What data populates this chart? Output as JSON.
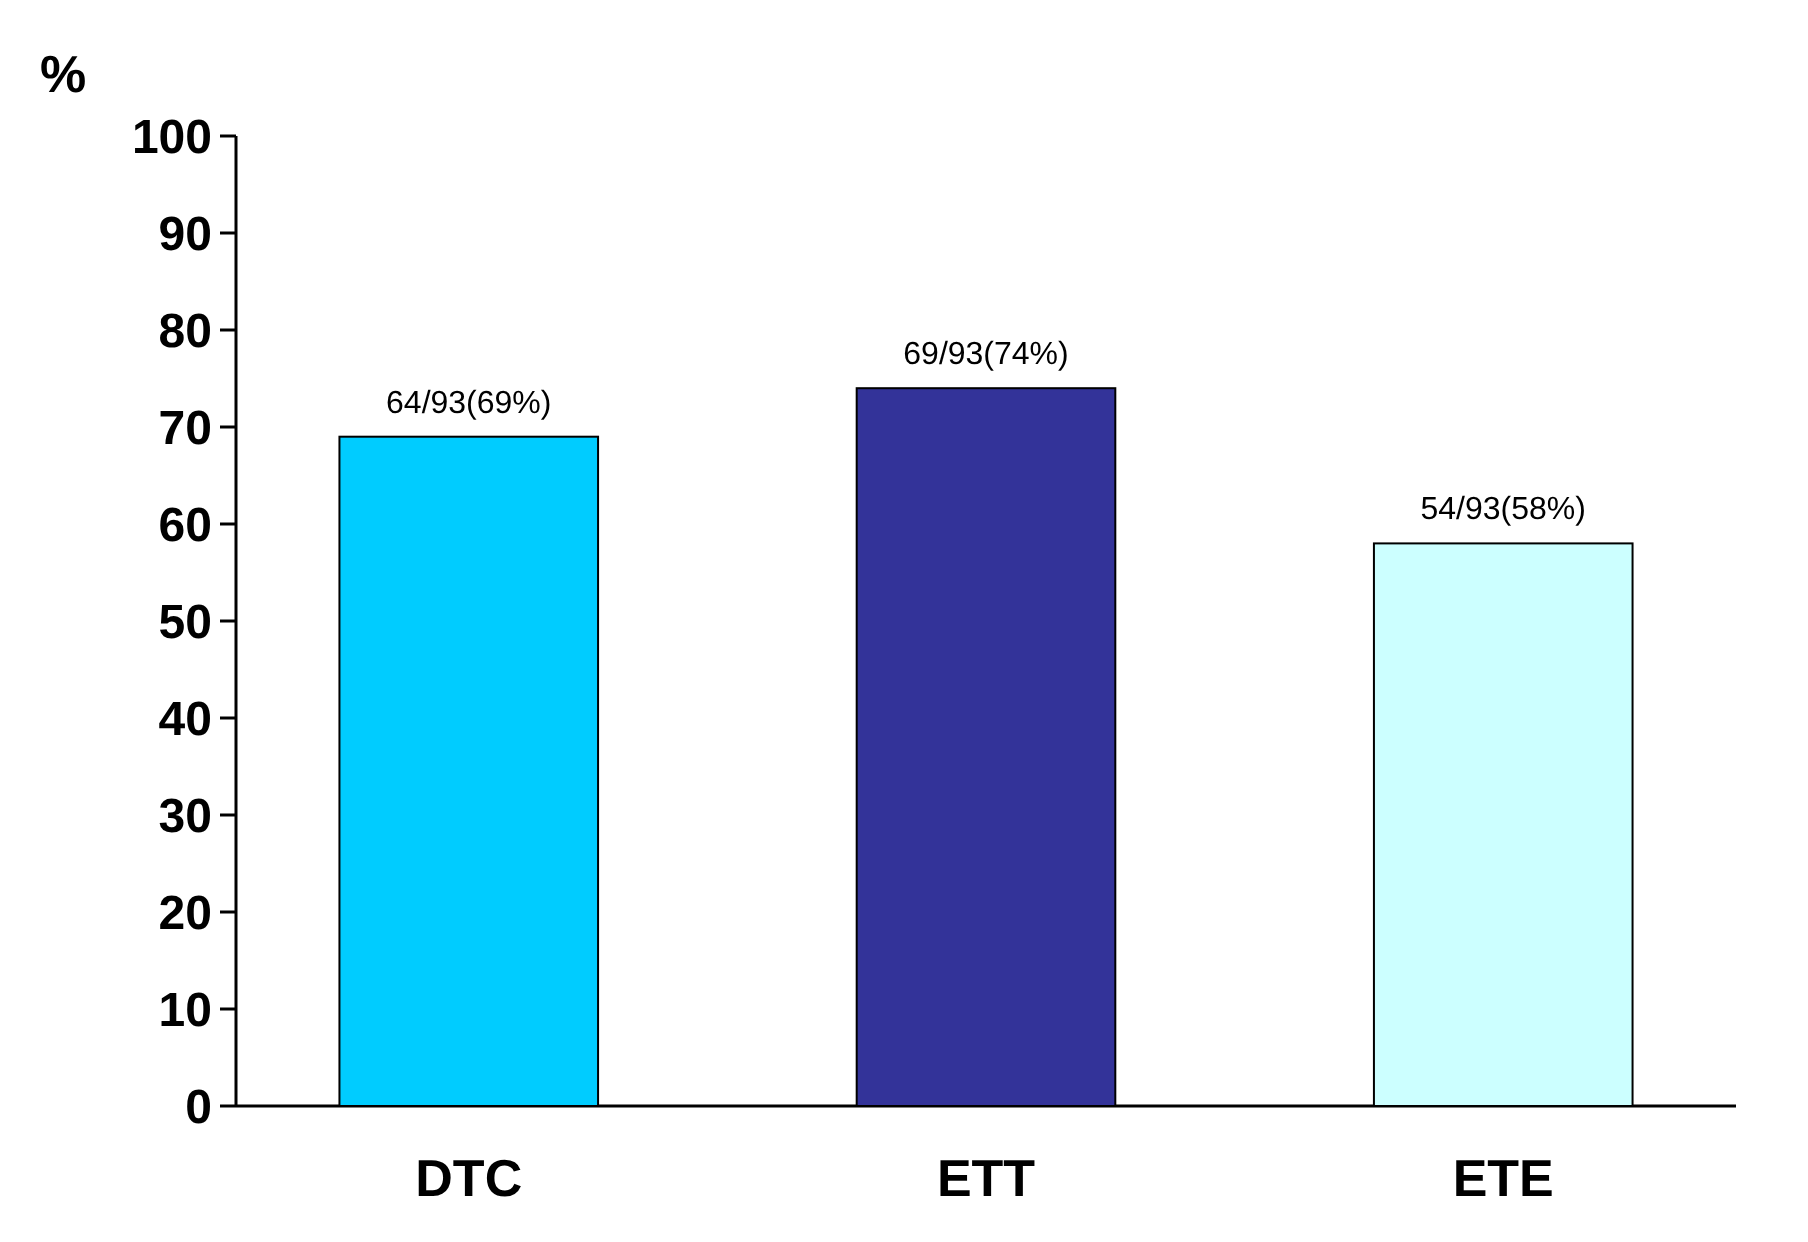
{
  "chart_data": {
    "type": "bar",
    "ylabel": "%",
    "categories": [
      "DTC",
      "ETT",
      "ETE"
    ],
    "values": [
      69,
      74,
      58
    ],
    "colors": [
      "#00ccff",
      "#333399",
      "#ccffff"
    ],
    "value_labels": [
      "64/93(69%)",
      "69/93(74%)",
      "54/93(58%)"
    ],
    "ylim": [
      0,
      100
    ],
    "yticks": [
      0,
      10,
      20,
      30,
      40,
      50,
      60,
      70,
      80,
      90,
      100
    ],
    "grid": false
  }
}
